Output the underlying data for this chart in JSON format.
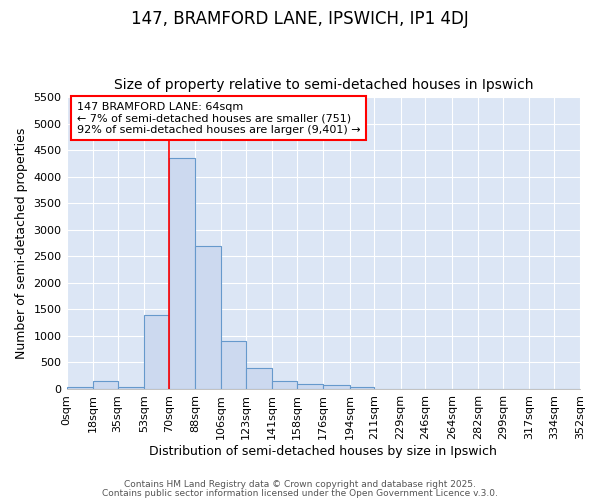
{
  "title_line1": "147, BRAMFORD LANE, IPSWICH, IP1 4DJ",
  "title_line2": "Size of property relative to semi-detached houses in Ipswich",
  "xlabel": "Distribution of semi-detached houses by size in Ipswich",
  "ylabel": "Number of semi-detached properties",
  "bin_labels": [
    "0sqm",
    "18sqm",
    "35sqm",
    "53sqm",
    "70sqm",
    "88sqm",
    "106sqm",
    "123sqm",
    "141sqm",
    "158sqm",
    "176sqm",
    "194sqm",
    "211sqm",
    "229sqm",
    "246sqm",
    "264sqm",
    "282sqm",
    "299sqm",
    "317sqm",
    "334sqm",
    "352sqm"
  ],
  "bin_edges": [
    0,
    18,
    35,
    53,
    70,
    88,
    106,
    123,
    141,
    158,
    176,
    194,
    211,
    229,
    246,
    264,
    282,
    299,
    317,
    334,
    352
  ],
  "bar_heights": [
    30,
    155,
    30,
    1400,
    4350,
    2700,
    900,
    400,
    155,
    100,
    75,
    30,
    0,
    0,
    0,
    0,
    0,
    0,
    0,
    0
  ],
  "bar_color": "#ccd9ef",
  "bar_edgecolor": "#6699cc",
  "bar_linewidth": 0.8,
  "red_line_x": 70,
  "annotation_text": "147 BRAMFORD LANE: 64sqm\n← 7% of semi-detached houses are smaller (751)\n92% of semi-detached houses are larger (9,401) →",
  "annotation_box_color": "white",
  "annotation_box_edgecolor": "red",
  "ylim": [
    0,
    5500
  ],
  "yticks": [
    0,
    500,
    1000,
    1500,
    2000,
    2500,
    3000,
    3500,
    4000,
    4500,
    5000,
    5500
  ],
  "fig_background_color": "#ffffff",
  "plot_background": "#dce6f5",
  "grid_color": "white",
  "footer_line1": "Contains HM Land Registry data © Crown copyright and database right 2025.",
  "footer_line2": "Contains public sector information licensed under the Open Government Licence v.3.0.",
  "title_fontsize": 12,
  "subtitle_fontsize": 10,
  "axis_label_fontsize": 9,
  "tick_fontsize": 8,
  "annotation_fontsize": 8,
  "footer_fontsize": 6.5
}
